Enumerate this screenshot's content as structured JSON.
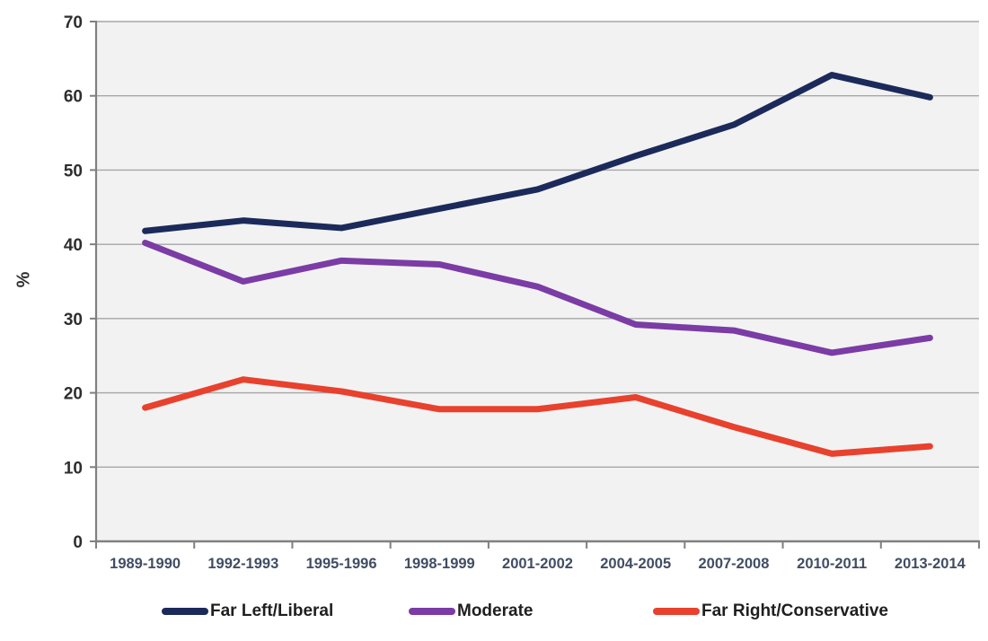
{
  "chart_data": {
    "type": "line",
    "title": "",
    "xlabel": "",
    "ylabel": "%",
    "ylim": [
      0,
      70
    ],
    "yticks": [
      0,
      10,
      20,
      30,
      40,
      50,
      60,
      70
    ],
    "grid": true,
    "legend_position": "bottom",
    "categories": [
      "1989-1990",
      "1992-1993",
      "1995-1996",
      "1998-1999",
      "2001-2002",
      "2004-2005",
      "2007-2008",
      "2010-2011",
      "2013-2014"
    ],
    "series": [
      {
        "name": "Far Left/Liberal",
        "color": "#1b2a5a",
        "values": [
          41.8,
          43.2,
          42.2,
          44.8,
          47.4,
          51.9,
          56.1,
          62.8,
          59.8
        ]
      },
      {
        "name": "Moderate",
        "color": "#7b3ca6",
        "values": [
          40.2,
          35.0,
          37.8,
          37.3,
          34.3,
          29.2,
          28.4,
          25.4,
          27.4
        ]
      },
      {
        "name": "Far Right/Conservative",
        "color": "#e8412e",
        "values": [
          18.0,
          21.8,
          20.2,
          17.8,
          17.8,
          19.4,
          15.4,
          11.8,
          12.8
        ]
      }
    ]
  },
  "colors": {
    "plot_background": "#f2f2f2",
    "gridline": "#a6a6a6",
    "axis": "#808080",
    "y_tick_label": "#2e2e2e",
    "x_tick_label": "#414d63",
    "legend_text": "#1f1f1f"
  }
}
